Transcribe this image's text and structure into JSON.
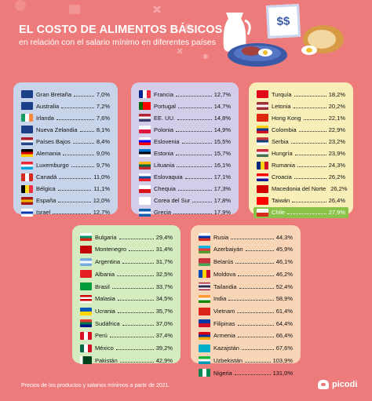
{
  "header": {
    "title": "EL COSTO DE ALIMENTOS BÁSICOS",
    "subtitle": "en relación con el salario mínimo en diferentes países",
    "price_sign": "$$"
  },
  "footer": {
    "note": "Precios de los productos y salarios mínimos a partir de 2021.",
    "brand": "picodi"
  },
  "colors": {
    "background": "#ee7b7b",
    "panel_blue": "#c8d4ea",
    "panel_lavender": "#d3cdea",
    "panel_yellow": "#f7efb7",
    "panel_green": "#d5ecc0",
    "panel_peach": "#f8d5b6",
    "highlight": "#8bc34a"
  },
  "panels": [
    {
      "rows": [
        {
          "name": "Gran Bretaña",
          "value": "7,0%"
        },
        {
          "name": "Australia",
          "value": "7,2%"
        },
        {
          "name": "Irlanda",
          "value": "7,6%"
        },
        {
          "name": "Nueva Zelandia",
          "value": "8,1%"
        },
        {
          "name": "Países Bajos",
          "value": "8,4%"
        },
        {
          "name": "Alemania",
          "value": "9,0%"
        },
        {
          "name": "Luxemburgo",
          "value": "9,7%"
        },
        {
          "name": "Canadá",
          "value": "11,0%"
        },
        {
          "name": "Bélgica",
          "value": "11,1%"
        },
        {
          "name": "España",
          "value": "12,0%"
        },
        {
          "name": "Israel",
          "value": "12,7%"
        }
      ]
    },
    {
      "rows": [
        {
          "name": "Francia",
          "value": "12,7%"
        },
        {
          "name": "Portugal",
          "value": "14,7%"
        },
        {
          "name": "EE. UU.",
          "value": "14,8%"
        },
        {
          "name": "Polonia",
          "value": "14,9%"
        },
        {
          "name": "Eslovenia",
          "value": "15,5%"
        },
        {
          "name": "Estonia",
          "value": "15,7%"
        },
        {
          "name": "Lituania",
          "value": "16,1%"
        },
        {
          "name": "Eslovaquia",
          "value": "17,1%"
        },
        {
          "name": "Chequia",
          "value": "17,3%"
        },
        {
          "name": "Corea del Sur",
          "value": "17,8%"
        },
        {
          "name": "Grecia",
          "value": "17,9%"
        }
      ]
    },
    {
      "rows": [
        {
          "name": "Turquía",
          "value": "18,2%"
        },
        {
          "name": "Letonia",
          "value": "20,2%"
        },
        {
          "name": "Hong Kong",
          "value": "22,1%"
        },
        {
          "name": "Colombia",
          "value": "22,9%"
        },
        {
          "name": "Serbia",
          "value": "23,2%"
        },
        {
          "name": "Hungría",
          "value": "23,9%"
        },
        {
          "name": "Rumania",
          "value": "24,3%"
        },
        {
          "name": "Croacia",
          "value": "26,2%"
        },
        {
          "name": "Macedonia del Norte",
          "value": "26,2%"
        },
        {
          "name": "Taiwán",
          "value": "26,4%"
        },
        {
          "name": "Chile",
          "value": "27,9%",
          "highlight": true
        }
      ]
    },
    {
      "rows": [
        {
          "name": "Bulgaria",
          "value": "29,4%"
        },
        {
          "name": "Montenegro",
          "value": "31,4%"
        },
        {
          "name": "Argentina",
          "value": "31,7%"
        },
        {
          "name": "Albania",
          "value": "32,5%"
        },
        {
          "name": "Brasil",
          "value": "33,7%"
        },
        {
          "name": "Malasia",
          "value": "34,5%"
        },
        {
          "name": "Ucrania",
          "value": "35,7%"
        },
        {
          "name": "Sudáfrica",
          "value": "37,0%"
        },
        {
          "name": "Perú",
          "value": "37,4%"
        },
        {
          "name": "México",
          "value": "39,2%"
        },
        {
          "name": "Pakistán",
          "value": "42,9%"
        }
      ]
    },
    {
      "rows": [
        {
          "name": "Rusia",
          "value": "44,3%"
        },
        {
          "name": "Azerbaiyán",
          "value": "45,9%"
        },
        {
          "name": "Belarús",
          "value": "46,1%"
        },
        {
          "name": "Moldova",
          "value": "46,2%"
        },
        {
          "name": "Tailandia",
          "value": "52,4%"
        },
        {
          "name": "India",
          "value": "58,9%"
        },
        {
          "name": "Vietnam",
          "value": "61,4%"
        },
        {
          "name": "Filipinas",
          "value": "64,4%"
        },
        {
          "name": "Armenia",
          "value": "66,4%"
        },
        {
          "name": "Kazajstán",
          "value": "67,6%"
        },
        {
          "name": "Uzbekistán",
          "value": "103,9%"
        },
        {
          "name": "Nigeria",
          "value": "131,0%"
        }
      ]
    }
  ]
}
